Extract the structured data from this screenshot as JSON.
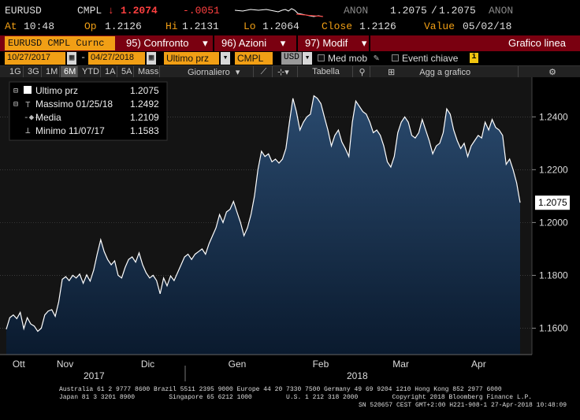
{
  "quote": {
    "ticker": "EURUSD",
    "source": "CMPL",
    "arrow": "↓",
    "last": "1.2074",
    "change": "-.0051",
    "cond": "ANON",
    "bid": "1.2075",
    "sep": "/",
    "ask": "1.2075",
    "cond2": "ANON",
    "at_label": "At",
    "at": "10:48",
    "op_label": "Op",
    "op": "1.2126",
    "hi_label": "Hi",
    "hi": "1.2131",
    "lo_label": "Lo",
    "lo": "1.2064",
    "close_label": "Close",
    "close": "1.2126",
    "value_label": "Value",
    "value": "05/02/18"
  },
  "command": {
    "ticker_field": "EURUSD CMPL Curnc",
    "btn1_num": "95)",
    "btn1": "Confronto",
    "btn2_num": "96)",
    "btn2": "Azioni",
    "btn3_num": "97)",
    "btn3": "Modif",
    "caret": "▾",
    "right_title": "Grafico linea"
  },
  "filters": {
    "start_date": "10/27/2017",
    "dash": "-",
    "end_date": "04/27/2018",
    "series_select": "Ultimo prz",
    "source_select": "CMPL",
    "currency": "USD",
    "med_mob": "Med mob",
    "eventi": "Eventi chiave",
    "info_icon": "i"
  },
  "toolbar": {
    "periods": [
      "1G",
      "3G",
      "1M",
      "6M",
      "YTD",
      "1A",
      "5A",
      "Mass"
    ],
    "active_period": "6M",
    "frequency": "Giornaliero",
    "table": "Tabella",
    "add": "Agg a grafico"
  },
  "legend": {
    "items": [
      {
        "label": "Ultimo prz",
        "value": "1.2075"
      },
      {
        "label": "Massimo 01/25/18",
        "value": "1.2492"
      },
      {
        "label": "Media",
        "value": "1.2109"
      },
      {
        "label": "Minimo 11/07/17",
        "value": "1.1583"
      }
    ]
  },
  "chart_data": {
    "type": "area",
    "title": "",
    "xlabel": "",
    "ylabel": "",
    "ylim": [
      1.15,
      1.255
    ],
    "yticks": [
      "1.2400",
      "1.2200",
      "1.2000",
      "1.1800",
      "1.1600"
    ],
    "ytick_values": [
      1.24,
      1.22,
      1.2,
      1.18,
      1.16
    ],
    "last_label": "1.2075",
    "last_value": 1.2075,
    "x_month_labels": [
      "Ott",
      "Nov",
      "Dic",
      "Gen",
      "Feb",
      "Mar",
      "Apr"
    ],
    "x_year_labels": [
      "2017",
      "2018"
    ],
    "accent": "#ffffff",
    "fill": "#1c3452",
    "values": [
      1.1596,
      1.164,
      1.165,
      1.1636,
      1.166,
      1.1598,
      1.164,
      1.1616,
      1.1608,
      1.1588,
      1.16,
      1.165,
      1.1665,
      1.167,
      1.1645,
      1.17,
      1.1785,
      1.1795,
      1.178,
      1.18,
      1.179,
      1.1805,
      1.177,
      1.1802,
      1.1778,
      1.182,
      1.188,
      1.1935,
      1.189,
      1.186,
      1.184,
      1.1855,
      1.18,
      1.179,
      1.183,
      1.186,
      1.187,
      1.185,
      1.1885,
      1.184,
      1.181,
      1.179,
      1.18,
      1.178,
      1.173,
      1.179,
      1.176,
      1.1798,
      1.178,
      1.181,
      1.184,
      1.187,
      1.188,
      1.186,
      1.188,
      1.189,
      1.19,
      1.188,
      1.192,
      1.195,
      1.198,
      1.203,
      1.2,
      1.204,
      1.205,
      1.208,
      1.204,
      1.2,
      1.195,
      1.198,
      1.203,
      1.21,
      1.22,
      1.227,
      1.225,
      1.226,
      1.223,
      1.224,
      1.2225,
      1.224,
      1.228,
      1.238,
      1.247,
      1.242,
      1.235,
      1.238,
      1.24,
      1.241,
      1.248,
      1.247,
      1.245,
      1.24,
      1.235,
      1.229,
      1.233,
      1.235,
      1.2305,
      1.228,
      1.225,
      1.238,
      1.246,
      1.244,
      1.242,
      1.241,
      1.238,
      1.234,
      1.235,
      1.233,
      1.229,
      1.223,
      1.221,
      1.225,
      1.234,
      1.238,
      1.24,
      1.238,
      1.233,
      1.232,
      1.234,
      1.239,
      1.235,
      1.231,
      1.226,
      1.229,
      1.23,
      1.234,
      1.243,
      1.241,
      1.235,
      1.231,
      1.228,
      1.23,
      1.225,
      1.229,
      1.231,
      1.233,
      1.232,
      1.238,
      1.235,
      1.239,
      1.236,
      1.235,
      1.233,
      1.222,
      1.224,
      1.22,
      1.215,
      1.2075
    ]
  },
  "footer": {
    "line1": "Australia 61 2 9777 8600 Brazil 5511 2395 9000 Europe 44 20 7330 7500 Germany 49 69 9204 1210 Hong Kong 852 2977 6000",
    "line2": "Japan 81 3 3201 8900         Singapore 65 6212 1000         U.S. 1 212 318 2000         Copyright 2018 Bloomberg Finance L.P.",
    "line3": "SN 520657 CEST GMT+2:00 H221-908-1 27-Apr-2018 10:48:09"
  }
}
